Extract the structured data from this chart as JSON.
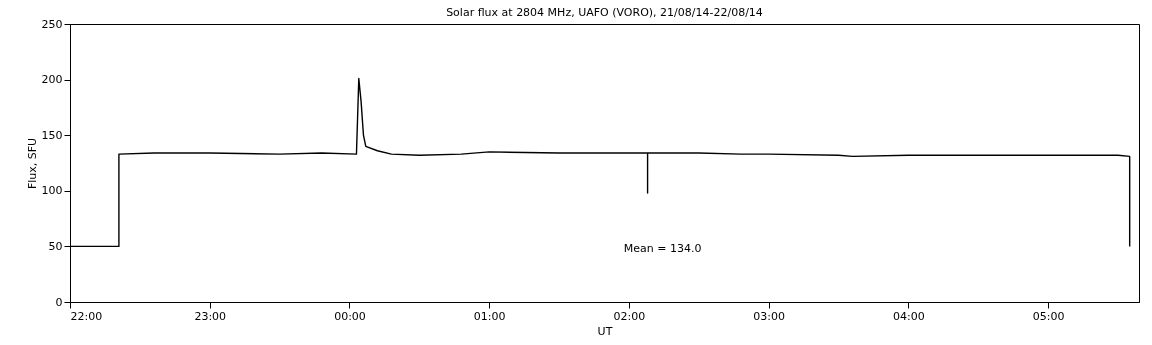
{
  "chart_data": {
    "type": "line",
    "title": "Solar flux at 2804 MHz, UAFO (VORO),  21/08/14-22/08/14",
    "xlabel": "UT",
    "ylabel": "Flux, SFU",
    "annotations": [
      "Mean =  134.0"
    ],
    "x": [
      "--08-21T22:00",
      "--08-21T22:21",
      "--08-21T22:21",
      "--08-21T22:36",
      "--08-21T23:00",
      "--08-21T23:30",
      "--08-21T23:48",
      "--08-22T00:03",
      "--08-22T00:04",
      "--08-22T00:05",
      "--08-22T00:06",
      "--08-22T00:07",
      "--08-22T00:12",
      "--08-22T00:18",
      "--08-22T00:30",
      "--08-22T00:48",
      "--08-22T01:00",
      "--08-22T01:30",
      "--08-22T02:00",
      "--08-22T02:08",
      "--08-22T02:08",
      "--08-22T02:08",
      "--08-22T02:30",
      "--08-22T02:48",
      "--08-22T03:00",
      "--08-22T03:30",
      "--08-22T03:36",
      "--08-22T04:00",
      "--08-22T04:30",
      "--08-22T05:00",
      "--08-22T05:30",
      "--08-22T05:35",
      "--08-22T05:35"
    ],
    "series": [
      {
        "color": "#000000",
        "values": [
          50,
          50,
          133,
          134,
          134,
          133,
          134,
          133,
          201,
          180,
          150,
          140,
          136,
          133,
          132,
          133,
          135,
          134,
          134,
          134,
          98,
          134,
          134,
          133,
          133,
          132,
          131,
          132,
          132,
          132,
          132,
          131,
          50
        ]
      }
    ],
    "xlim": [
      "--08-21T22:00",
      "--08-22T05:39"
    ],
    "xticks": [
      {
        "value": "--08-21T22:00",
        "label": "22:00"
      },
      {
        "value": "--08-21T23:00",
        "label": "23:00"
      },
      {
        "value": "--08-22T00:00",
        "label": "00:00"
      },
      {
        "value": "--08-22T01:00",
        "label": "01:00"
      },
      {
        "value": "--08-22T02:00",
        "label": "02:00"
      },
      {
        "value": "--08-22T03:00",
        "label": "03:00"
      },
      {
        "value": "--08-22T04:00",
        "label": "04:00"
      },
      {
        "value": "--08-22T05:00",
        "label": "05:00"
      }
    ],
    "ylim": [
      0,
      250
    ],
    "yticks": [
      0,
      50,
      100,
      150,
      200,
      250
    ],
    "grid": false,
    "marker": "none",
    "line_style": "solid"
  }
}
